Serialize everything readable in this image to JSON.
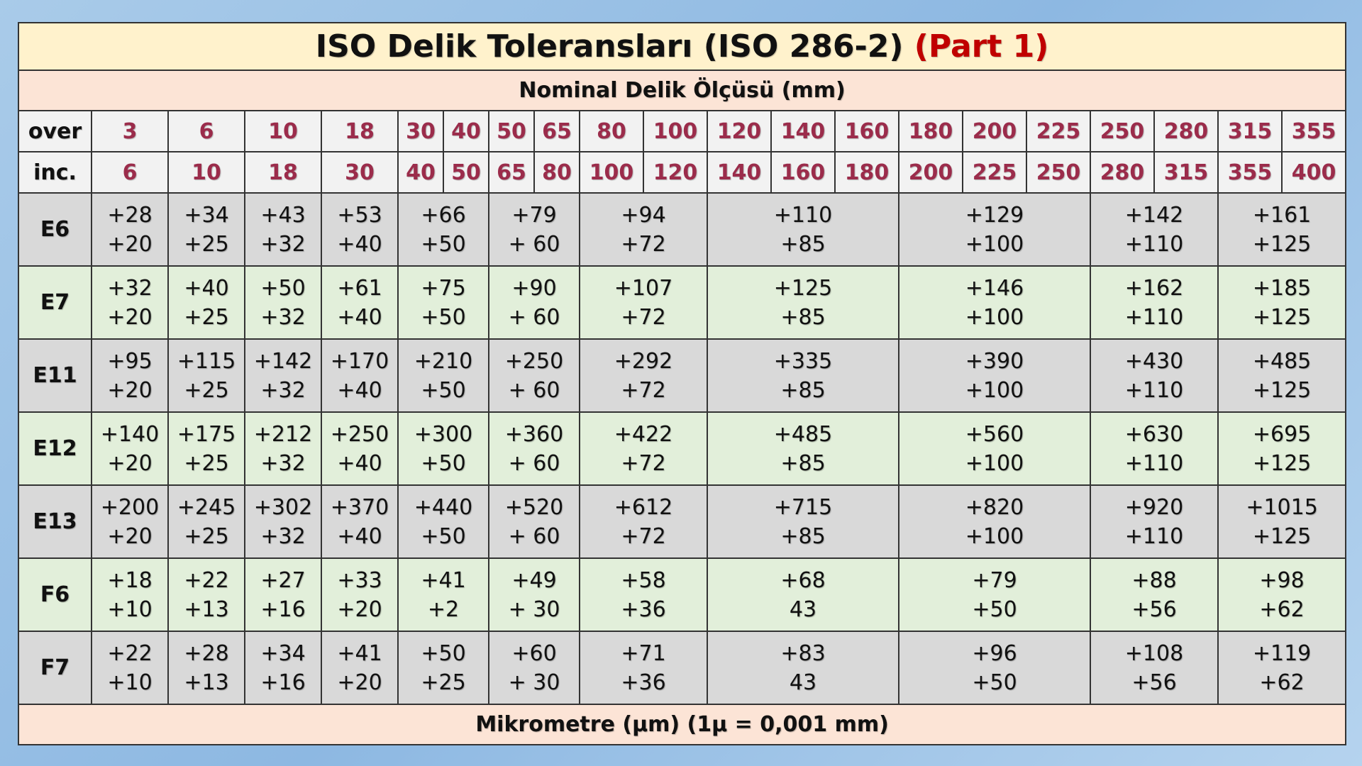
{
  "header": {
    "title": "ISO Delik Toleransları (ISO 286-2)",
    "title_highlight": "(Part 1)",
    "subtitle": "Nominal Delik Ölçüsü (mm)"
  },
  "table": {
    "over_label": "over",
    "over": [
      "3",
      "6",
      "10",
      "18",
      "30",
      "40",
      "50",
      "65",
      "80",
      "100",
      "120",
      "140",
      "160",
      "180",
      "200",
      "225",
      "250",
      "280",
      "315",
      "355"
    ],
    "inc_label": "inc.",
    "inc": [
      "6",
      "10",
      "18",
      "30",
      "40",
      "50",
      "65",
      "80",
      "100",
      "120",
      "140",
      "160",
      "180",
      "200",
      "225",
      "250",
      "280",
      "315",
      "355",
      "400"
    ],
    "rows": [
      {
        "label": "E6",
        "cells": [
          [
            "+28",
            "+20"
          ],
          [
            "+34",
            "+25"
          ],
          [
            "+43",
            "+32"
          ],
          [
            "+53",
            "+40"
          ],
          [
            "+66",
            "+50"
          ],
          [
            "+79",
            "+ 60"
          ],
          [
            "+94",
            "+72"
          ],
          [
            "+110",
            "+85"
          ],
          [
            "+129",
            "+100"
          ],
          [
            "+142",
            "+110"
          ],
          [
            "+161",
            "+125"
          ]
        ]
      },
      {
        "label": "E7",
        "cells": [
          [
            "+32",
            "+20"
          ],
          [
            "+40",
            "+25"
          ],
          [
            "+50",
            "+32"
          ],
          [
            "+61",
            "+40"
          ],
          [
            "+75",
            "+50"
          ],
          [
            "+90",
            "+ 60"
          ],
          [
            "+107",
            "+72"
          ],
          [
            "+125",
            "+85"
          ],
          [
            "+146",
            "+100"
          ],
          [
            "+162",
            "+110"
          ],
          [
            "+185",
            "+125"
          ]
        ]
      },
      {
        "label": "E11",
        "cells": [
          [
            "+95",
            "+20"
          ],
          [
            "+115",
            "+25"
          ],
          [
            "+142",
            "+32"
          ],
          [
            "+170",
            "+40"
          ],
          [
            "+210",
            "+50"
          ],
          [
            "+250",
            "+ 60"
          ],
          [
            "+292",
            "+72"
          ],
          [
            "+335",
            "+85"
          ],
          [
            "+390",
            "+100"
          ],
          [
            "+430",
            "+110"
          ],
          [
            "+485",
            "+125"
          ]
        ]
      },
      {
        "label": "E12",
        "cells": [
          [
            "+140",
            "+20"
          ],
          [
            "+175",
            "+25"
          ],
          [
            "+212",
            "+32"
          ],
          [
            "+250",
            "+40"
          ],
          [
            "+300",
            "+50"
          ],
          [
            "+360",
            "+ 60"
          ],
          [
            "+422",
            "+72"
          ],
          [
            "+485",
            "+85"
          ],
          [
            "+560",
            "+100"
          ],
          [
            "+630",
            "+110"
          ],
          [
            "+695",
            "+125"
          ]
        ]
      },
      {
        "label": "E13",
        "cells": [
          [
            "+200",
            "+20"
          ],
          [
            "+245",
            "+25"
          ],
          [
            "+302",
            "+32"
          ],
          [
            "+370",
            "+40"
          ],
          [
            "+440",
            "+50"
          ],
          [
            "+520",
            "+ 60"
          ],
          [
            "+612",
            "+72"
          ],
          [
            "+715",
            "+85"
          ],
          [
            "+820",
            "+100"
          ],
          [
            "+920",
            "+110"
          ],
          [
            "+1015",
            "+125"
          ]
        ]
      },
      {
        "label": "F6",
        "cells": [
          [
            "+18",
            "+10"
          ],
          [
            "+22",
            "+13"
          ],
          [
            "+27",
            "+16"
          ],
          [
            "+33",
            "+20"
          ],
          [
            "+41",
            "+2"
          ],
          [
            "+49",
            "+ 30"
          ],
          [
            "+58",
            "+36"
          ],
          [
            "+68",
            "43"
          ],
          [
            "+79",
            "+50"
          ],
          [
            "+88",
            "+56"
          ],
          [
            "+98",
            "+62"
          ]
        ]
      },
      {
        "label": "F7",
        "cells": [
          [
            "+22",
            "+10"
          ],
          [
            "+28",
            "+13"
          ],
          [
            "+34",
            "+16"
          ],
          [
            "+41",
            "+20"
          ],
          [
            "+50",
            "+25"
          ],
          [
            "+60",
            "+ 30"
          ],
          [
            "+71",
            "+36"
          ],
          [
            "+83",
            "43"
          ],
          [
            "+96",
            "+50"
          ],
          [
            "+108",
            "+56"
          ],
          [
            "+119",
            "+62"
          ]
        ]
      }
    ]
  },
  "footer": "Mikrometre (µm) (1µ = 0,001 mm)"
}
